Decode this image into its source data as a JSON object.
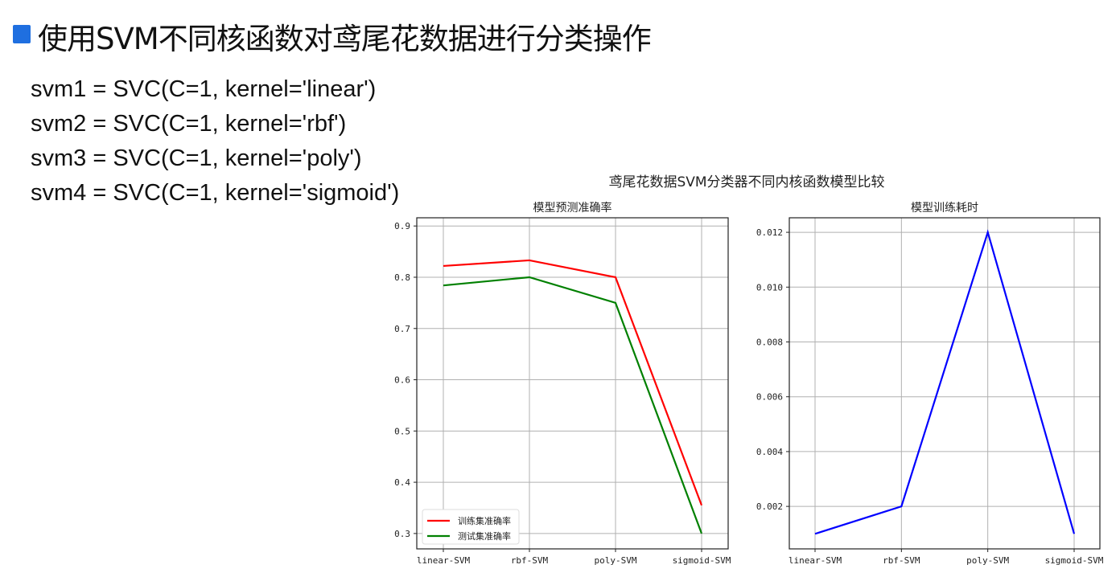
{
  "header": {
    "title": "使用SVM不同核函数对鸢尾花数据进行分类操作",
    "bullet_color": "#1f6fe0"
  },
  "code_lines": [
    "svm1 = SVC(C=1, kernel='linear')",
    "svm2 = SVC(C=1, kernel='rbf')",
    "svm3 = SVC(C=1, kernel='poly')",
    "svm4 = SVC(C=1, kernel='sigmoid')"
  ],
  "figure_title": "鸢尾花数据SVM分类器不同内核函数模型比较",
  "chart_data": [
    {
      "type": "line",
      "title": "模型预测准确率",
      "categories": [
        "linear-SVM",
        "rbf-SVM",
        "poly-SVM",
        "sigmoid-SVM"
      ],
      "series": [
        {
          "name": "训练集准确率",
          "color": "#ff0000",
          "values": [
            0.822,
            0.833,
            0.8,
            0.355
          ]
        },
        {
          "name": "测试集准确率",
          "color": "#008000",
          "values": [
            0.784,
            0.8,
            0.75,
            0.3
          ]
        }
      ],
      "yticks": [
        "0.3",
        "0.4",
        "0.5",
        "0.6",
        "0.7",
        "0.8",
        "0.9"
      ],
      "ylim": [
        0.27,
        0.916
      ],
      "grid": true,
      "legend": "lower-left"
    },
    {
      "type": "line",
      "title": "模型训练耗时",
      "categories": [
        "linear-SVM",
        "rbf-SVM",
        "poly-SVM",
        "sigmoid-SVM"
      ],
      "series": [
        {
          "color": "#0000ff",
          "values": [
            0.001,
            0.002,
            0.012,
            0.001
          ]
        }
      ],
      "yticks": [
        "0.002",
        "0.004",
        "0.006",
        "0.008",
        "0.010",
        "0.012"
      ],
      "ylim": [
        0.00045,
        0.01253
      ],
      "grid": true
    }
  ]
}
